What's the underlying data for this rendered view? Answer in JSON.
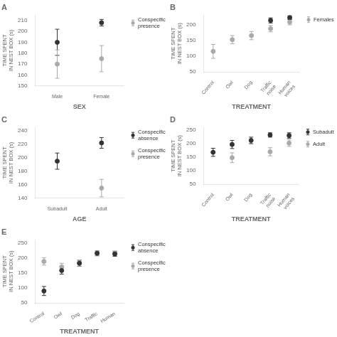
{
  "chart_data": [
    {
      "type": "scatter",
      "title": "A",
      "xlabel": "SEX",
      "ylabel": "TIME SPENT\nIN NEST BOX (s)",
      "categories": [
        "Male",
        "Female"
      ],
      "ylim": [
        150,
        215
      ],
      "yticks": [
        150,
        160,
        170,
        180,
        190,
        200,
        210
      ],
      "grid": false,
      "legend": "right",
      "series": [
        {
          "color": "#333333",
          "values": [
            190,
            208
          ],
          "errors": [
            12,
            3
          ]
        },
        {
          "name": "Conspecific\npresence",
          "color": "#aaaaaa",
          "values": [
            170,
            175
          ],
          "errors": [
            13,
            12
          ]
        }
      ]
    },
    {
      "type": "scatter",
      "title": "B",
      "xlabel": "TREATMENT",
      "ylabel": "TIME SPENT\nIN NEST BOX (s)",
      "categories": [
        "Control",
        "Owl",
        "Dog",
        "Traffic\nnoise",
        "Human\nvoices"
      ],
      "ylim": [
        50,
        230
      ],
      "yticks": [
        50,
        100,
        150,
        200
      ],
      "grid": false,
      "legend": "right",
      "series": [
        {
          "name": "Females",
          "color": "#aaaaaa",
          "values": [
            115,
            152,
            165,
            187,
            208
          ],
          "errors": [
            22,
            13,
            13,
            10,
            9
          ]
        },
        {
          "color": "#333333",
          "values": [
            null,
            null,
            null,
            213,
            222
          ],
          "errors": [
            null,
            null,
            null,
            8,
            6
          ]
        }
      ]
    },
    {
      "type": "scatter",
      "title": "C",
      "xlabel": "AGE",
      "ylabel": "TIME SPENT\nIN NEST BOX (s)",
      "categories": [
        "Subadult",
        "Adult"
      ],
      "ylim": [
        140,
        245
      ],
      "yticks": [
        140,
        160,
        180,
        200,
        220,
        240
      ],
      "grid": false,
      "legend": "right",
      "series": [
        {
          "name": "Conspecific\nabsence",
          "color": "#333333",
          "values": [
            195,
            222
          ],
          "errors": [
            12,
            8
          ]
        },
        {
          "name": "Conspecific\npresence",
          "color": "#aaaaaa",
          "values": [
            null,
            155
          ],
          "errors": [
            null,
            13
          ]
        }
      ]
    },
    {
      "type": "scatter",
      "title": "D",
      "xlabel": "TREATMENT",
      "ylabel": "TIME SPENT\nIN NEST BOX (s)",
      "categories": [
        "Control",
        "Owl",
        "Dog",
        "Traffic\nnoise",
        "Human\nvoices"
      ],
      "ylim": [
        50,
        260
      ],
      "yticks": [
        50,
        100,
        150,
        200,
        250
      ],
      "grid": false,
      "legend": "right",
      "series": [
        {
          "name": "Subadult",
          "color": "#333333",
          "values": [
            168,
            197,
            212,
            232,
            230
          ],
          "errors": [
            15,
            15,
            12,
            8,
            10
          ]
        },
        {
          "name": "Adult",
          "color": "#aaaaaa",
          "values": [
            null,
            148,
            null,
            170,
            202
          ],
          "errors": [
            null,
            18,
            null,
            15,
            12
          ]
        }
      ]
    },
    {
      "type": "scatter",
      "title": "E",
      "xlabel": "TREATMENT",
      "ylabel": "TIME SPENT\nIN NEST BOX (s)",
      "categories": [
        "Control",
        "Owl",
        "Dog",
        "Traffic",
        "Human"
      ],
      "ylim": [
        50,
        260
      ],
      "yticks": [
        50,
        100,
        150,
        200,
        250
      ],
      "grid": false,
      "legend": "right",
      "series": [
        {
          "name": "Conspecific\nabsence",
          "color": "#333333",
          "values": [
            90,
            158,
            182,
            215,
            213
          ],
          "errors": [
            15,
            12,
            10,
            8,
            8
          ]
        },
        {
          "name": "Conspecific\npresence",
          "color": "#aaaaaa",
          "values": [
            188,
            170,
            183,
            215,
            215
          ],
          "errors": [
            12,
            12,
            10,
            8,
            8
          ]
        }
      ]
    }
  ]
}
